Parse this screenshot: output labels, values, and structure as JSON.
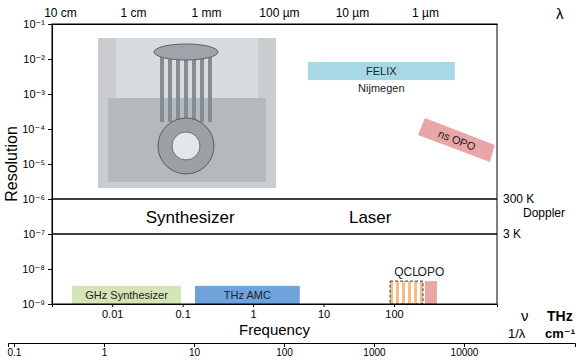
{
  "chart_data": {
    "type": "range",
    "x_label": "Frequency",
    "y_label": "Resolution",
    "log": true,
    "xlim": [
      0.0014,
      2900
    ],
    "xticks": [
      0.01,
      0.1,
      1,
      10,
      100
    ],
    "x_symbol": "ν",
    "x_unit": "THz",
    "ylim": [
      1e-09,
      0.1
    ],
    "yticks": [
      {
        "value": 0.1,
        "label": "10⁻¹"
      },
      {
        "value": 0.01,
        "label": "10⁻²"
      },
      {
        "value": 0.001,
        "label": "10⁻³"
      },
      {
        "value": 0.0001,
        "label": "10⁻⁴"
      },
      {
        "value": 1e-05,
        "label": "10⁻⁵"
      },
      {
        "value": 1e-06,
        "label": "10⁻⁶"
      },
      {
        "value": 1e-07,
        "label": "10⁻⁷"
      },
      {
        "value": 1e-08,
        "label": "10⁻⁸"
      },
      {
        "value": 1e-09,
        "label": "10⁻⁹"
      }
    ],
    "x2lim": [
      0.1288,
      1.03e-07
    ],
    "x2ticks": [
      {
        "value": 0.1,
        "label": "10 cm"
      },
      {
        "value": 0.01,
        "label": "1 cm"
      },
      {
        "value": 0.001,
        "label": "1 mm"
      },
      {
        "value": 0.0001,
        "label": "100 µm"
      },
      {
        "value": 1e-05,
        "label": "10 µm"
      },
      {
        "value": 1e-06,
        "label": "1 µm"
      }
    ],
    "x2_label": "λ",
    "x3lim": [
      0.0858,
      171100
    ],
    "x3ticks": [
      0.1,
      1,
      10,
      100,
      1000,
      10000
    ],
    "x3_symbol": "1/λ",
    "x3_unit": "cm⁻¹",
    "hlines": [
      {
        "value": 1e-06,
        "labels": [
          "300 K",
          "Doppler"
        ]
      },
      {
        "value": 1e-07,
        "labels": [
          "3 K"
        ]
      }
    ],
    "annotations": [
      {
        "text": "Synthesizer",
        "x": 0.128,
        "y": 3.16e-07
      },
      {
        "text": "Laser",
        "x": 46,
        "y": 3.16e-07
      }
    ],
    "series": [
      {
        "name": "FELIX",
        "sublabel": "Nijmegen",
        "color": "#a6d9e5",
        "x": [
          6,
          730
        ],
        "y": [
          0.0025,
          0.0082
        ]
      },
      {
        "name": "ns OPO",
        "color": "#e9a6a6",
        "x": [
          275,
          2700,
          2300,
          219
        ],
        "y": [
          0.000206,
          3.5e-05,
          1.14e-05,
          6.7e-05
        ]
      },
      {
        "name": "GHz Synthesizer",
        "color": "#d5e5b7",
        "x": [
          0.0027,
          0.095
        ],
        "y": [
          1e-09,
          3.3e-09
        ]
      },
      {
        "name": "THz AMC",
        "color": "#6ea3dc",
        "x": [
          0.15,
          4.6
        ],
        "y": [
          1e-09,
          3.3e-09
        ]
      },
      {
        "name": "QCL",
        "color": "#f5be87",
        "line_style": "dashed",
        "x": [
          88,
          258
        ],
        "y": [
          1e-09,
          4.5e-09
        ]
      },
      {
        "name": "OPO",
        "color": "#e9a6a6",
        "x": [
          275,
          407
        ],
        "y": [
          1e-09,
          4.5e-09
        ]
      }
    ]
  }
}
